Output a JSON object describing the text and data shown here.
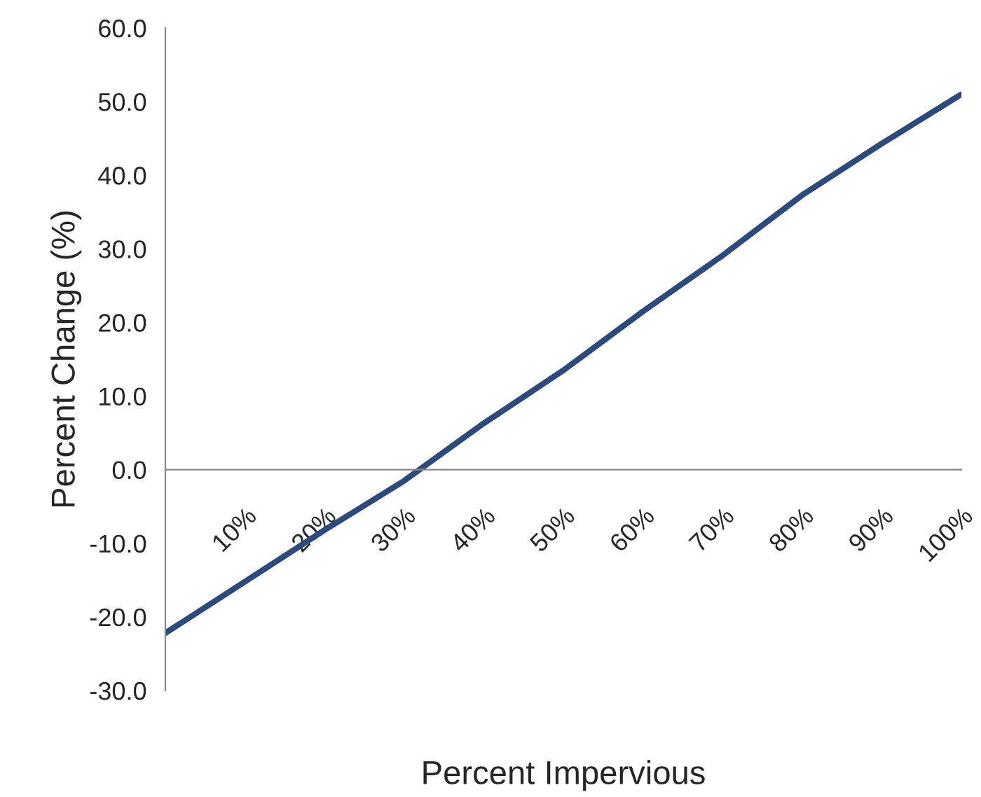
{
  "chart_data": {
    "type": "line",
    "xlabel": "Percent Impervious",
    "ylabel": "Percent Change (%)",
    "categories": [
      null,
      "10%",
      "20%",
      "30%",
      "40%",
      "50%",
      "60%",
      "70%",
      "80%",
      "90%",
      "100%"
    ],
    "series": [
      {
        "color": "#2e4a7a",
        "values": [
          -22.2,
          -15.2,
          -8.2,
          -1.5,
          6.3,
          13.5,
          21.5,
          29.1,
          37.3,
          44.3,
          51.0
        ]
      }
    ],
    "ylim": [
      -30,
      60
    ],
    "yticks": [
      {
        "value": -30,
        "label": "-30.0"
      },
      {
        "value": -20,
        "label": "-20.0"
      },
      {
        "value": -10,
        "label": "-10.0"
      },
      {
        "value": 0,
        "label": "0.0"
      },
      {
        "value": 10,
        "label": "10.0"
      },
      {
        "value": 20,
        "label": "20.0"
      },
      {
        "value": 30,
        "label": "30.0"
      },
      {
        "value": 40,
        "label": "40.0"
      },
      {
        "value": 50,
        "label": "50.0"
      },
      {
        "value": 60,
        "label": "60.0"
      }
    ],
    "grid": false,
    "marker": "none",
    "line_style": "solid"
  }
}
